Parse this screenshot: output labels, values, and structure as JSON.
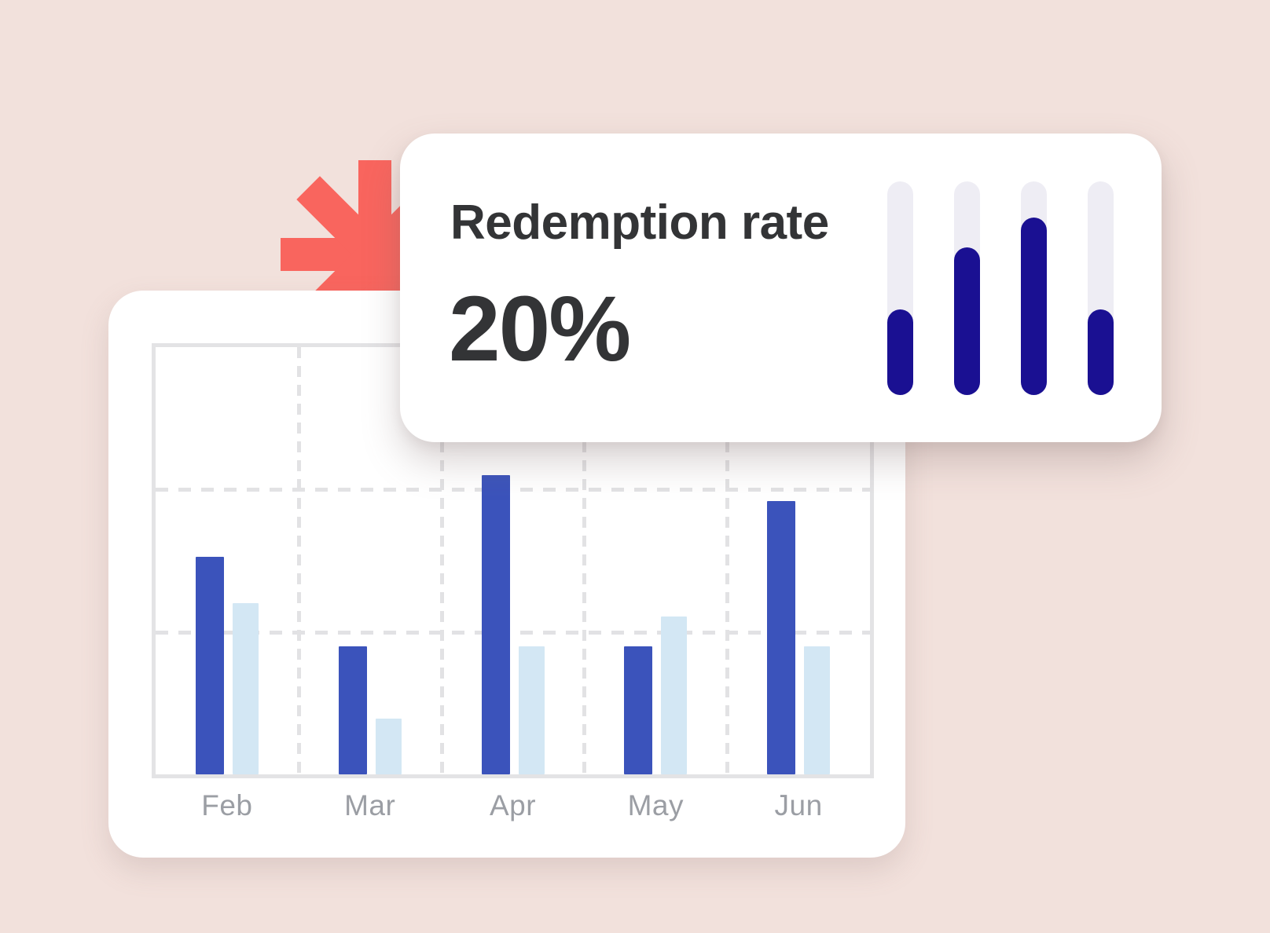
{
  "page": {
    "background_color": "#F2E1DC"
  },
  "decoration": {
    "asterisk_color": "#F9655E"
  },
  "stat_card": {
    "title": "Redemption rate",
    "value": "20%",
    "text_color": "#333436",
    "pills": {
      "track_color": "#EEEDF4",
      "fill_color": "#1A1092",
      "fills_percent": [
        40,
        69,
        83,
        40
      ]
    }
  },
  "chart_card": {
    "x_label_color": "#9B9EA4"
  },
  "chart_data": {
    "type": "bar",
    "title": "",
    "xlabel": "",
    "ylabel": "",
    "categories": [
      "Feb",
      "Mar",
      "Apr",
      "May",
      "Jun"
    ],
    "series": [
      {
        "name": "dark-blue",
        "color": "#3B53BB",
        "values": [
          51,
          30,
          70,
          30,
          64
        ]
      },
      {
        "name": "light-blue",
        "color": "#D3E7F4",
        "values": [
          40,
          13,
          30,
          37,
          30
        ]
      }
    ],
    "ylim": [
      0,
      100
    ],
    "y_tick_labels_visible": false,
    "grid": {
      "style": "dashed",
      "vertical_lines": 4,
      "horizontal_lines": 2
    },
    "legend": "none"
  }
}
